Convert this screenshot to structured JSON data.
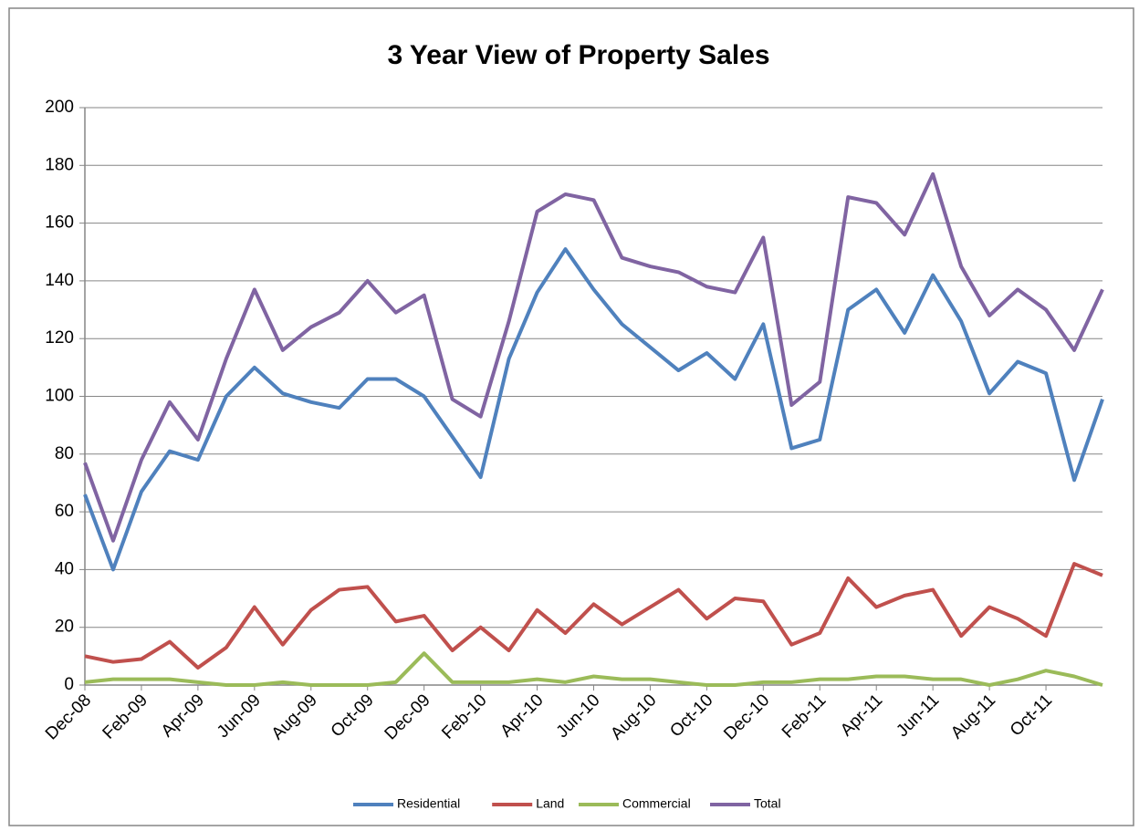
{
  "chart_data": {
    "type": "line",
    "title": "3 Year View of Property Sales",
    "categories": [
      "Dec-08",
      null,
      "Feb-09",
      null,
      "Apr-09",
      null,
      "Jun-09",
      null,
      "Aug-09",
      null,
      "Oct-09",
      null,
      "Dec-09",
      null,
      "Feb-10",
      null,
      "Apr-10",
      null,
      "Jun-10",
      null,
      "Aug-10",
      null,
      "Oct-10",
      null,
      "Dec-10",
      null,
      "Feb-11",
      null,
      "Apr-11",
      null,
      "Jun-11",
      null,
      "Aug-11",
      null,
      "Oct-11",
      null,
      null
    ],
    "series": [
      {
        "name": "Residential",
        "color": "#4f81bd",
        "values": [
          66,
          40,
          67,
          81,
          78,
          100,
          110,
          101,
          98,
          96,
          106,
          106,
          100,
          86,
          72,
          113,
          136,
          151,
          137,
          125,
          117,
          109,
          115,
          106,
          125,
          82,
          85,
          130,
          137,
          122,
          142,
          126,
          101,
          112,
          108,
          71,
          99
        ]
      },
      {
        "name": "Land",
        "color": "#c0504d",
        "values": [
          10,
          8,
          9,
          15,
          6,
          13,
          27,
          14,
          26,
          33,
          34,
          22,
          24,
          12,
          20,
          12,
          26,
          18,
          28,
          21,
          27,
          33,
          23,
          30,
          29,
          14,
          18,
          37,
          27,
          31,
          33,
          17,
          27,
          23,
          17,
          42,
          38
        ]
      },
      {
        "name": "Commercial",
        "color": "#9bbb59",
        "values": [
          1,
          2,
          2,
          2,
          1,
          0,
          0,
          1,
          0,
          0,
          0,
          1,
          11,
          1,
          1,
          1,
          2,
          1,
          3,
          2,
          2,
          1,
          0,
          0,
          1,
          1,
          2,
          2,
          3,
          3,
          2,
          2,
          0,
          2,
          5,
          3,
          0
        ]
      },
      {
        "name": "Total",
        "color": "#8064a2",
        "values": [
          77,
          50,
          78,
          98,
          85,
          113,
          137,
          116,
          124,
          129,
          140,
          129,
          135,
          99,
          93,
          126,
          164,
          170,
          168,
          148,
          145,
          143,
          138,
          136,
          155,
          97,
          105,
          169,
          167,
          156,
          177,
          145,
          128,
          137,
          130,
          116,
          137
        ]
      }
    ],
    "ylim": [
      0,
      200
    ],
    "yticks": [
      0,
      20,
      40,
      60,
      80,
      100,
      120,
      140,
      160,
      180,
      200
    ],
    "grid": true,
    "legend": "bottom"
  }
}
